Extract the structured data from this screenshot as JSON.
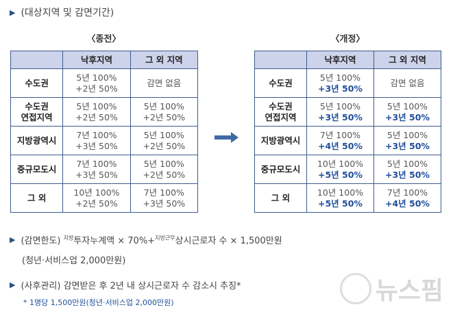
{
  "section_title": "(대상지역 및 감면기간)",
  "columns": [
    "",
    "낙후지역",
    "그 외 지역"
  ],
  "before": {
    "caption": "〈종전〉",
    "rows": [
      {
        "region": [
          "수도권"
        ],
        "lagging": [
          "5년 100%",
          "+2년 50%"
        ],
        "other": [
          "감면 없음"
        ]
      },
      {
        "region": [
          "수도권",
          "연접지역"
        ],
        "lagging": [
          "5년 100%",
          "+2년 50%"
        ],
        "other": [
          "5년 100%",
          "+2년 50%"
        ]
      },
      {
        "region": [
          "지방광역시"
        ],
        "lagging": [
          "7년 100%",
          "+3년 50%"
        ],
        "other": [
          "5년 100%",
          "+2년 50%"
        ]
      },
      {
        "region": [
          "중규모도시"
        ],
        "lagging": [
          "7년 100%",
          "+3년 50%"
        ],
        "other": [
          "5년 100%",
          "+2년 50%"
        ]
      },
      {
        "region": [
          "그 외"
        ],
        "lagging": [
          "10년 100%",
          "+2년 50%"
        ],
        "other": [
          "7년 100%",
          "+3년 50%"
        ]
      }
    ]
  },
  "after": {
    "caption": "〈개정〉",
    "rows": [
      {
        "region": [
          "수도권"
        ],
        "lagging": [
          "5년 100%",
          "+3년 50%"
        ],
        "other": [
          "감면 없음"
        ]
      },
      {
        "region": [
          "수도권",
          "연접지역"
        ],
        "lagging": [
          "5년 100%",
          "+3년 50%"
        ],
        "other": [
          "5년 100%",
          "+3년 50%"
        ]
      },
      {
        "region": [
          "지방광역시"
        ],
        "lagging": [
          "7년 100%",
          "+4년 50%"
        ],
        "other": [
          "5년 100%",
          "+3년 50%"
        ]
      },
      {
        "region": [
          "중규모도시"
        ],
        "lagging": [
          "10년 100%",
          "+5년 50%"
        ],
        "other": [
          "5년 100%",
          "+3년 50%"
        ]
      },
      {
        "region": [
          "그 외"
        ],
        "lagging": [
          "10년 100%",
          "+5년 50%"
        ],
        "other": [
          "7년 100%",
          "+4년 50%"
        ]
      }
    ]
  },
  "limit": {
    "label": "(감면한도)",
    "sup1": "지방",
    "part1": "투자누계액 × 70%+",
    "sup2": "지방근무",
    "part2": "상시근로자 수 × 1,500만원",
    "line2": "(청년·서비스업 2,000만원)"
  },
  "aftercare": {
    "text": "(사후관리) 감면받은 후 2년 내 상시근로자 수 감소시 추징*",
    "note": "* 1명당 1,500만원(청년·서비스업 2,000만원)"
  },
  "watermark": "뉴스핌"
}
